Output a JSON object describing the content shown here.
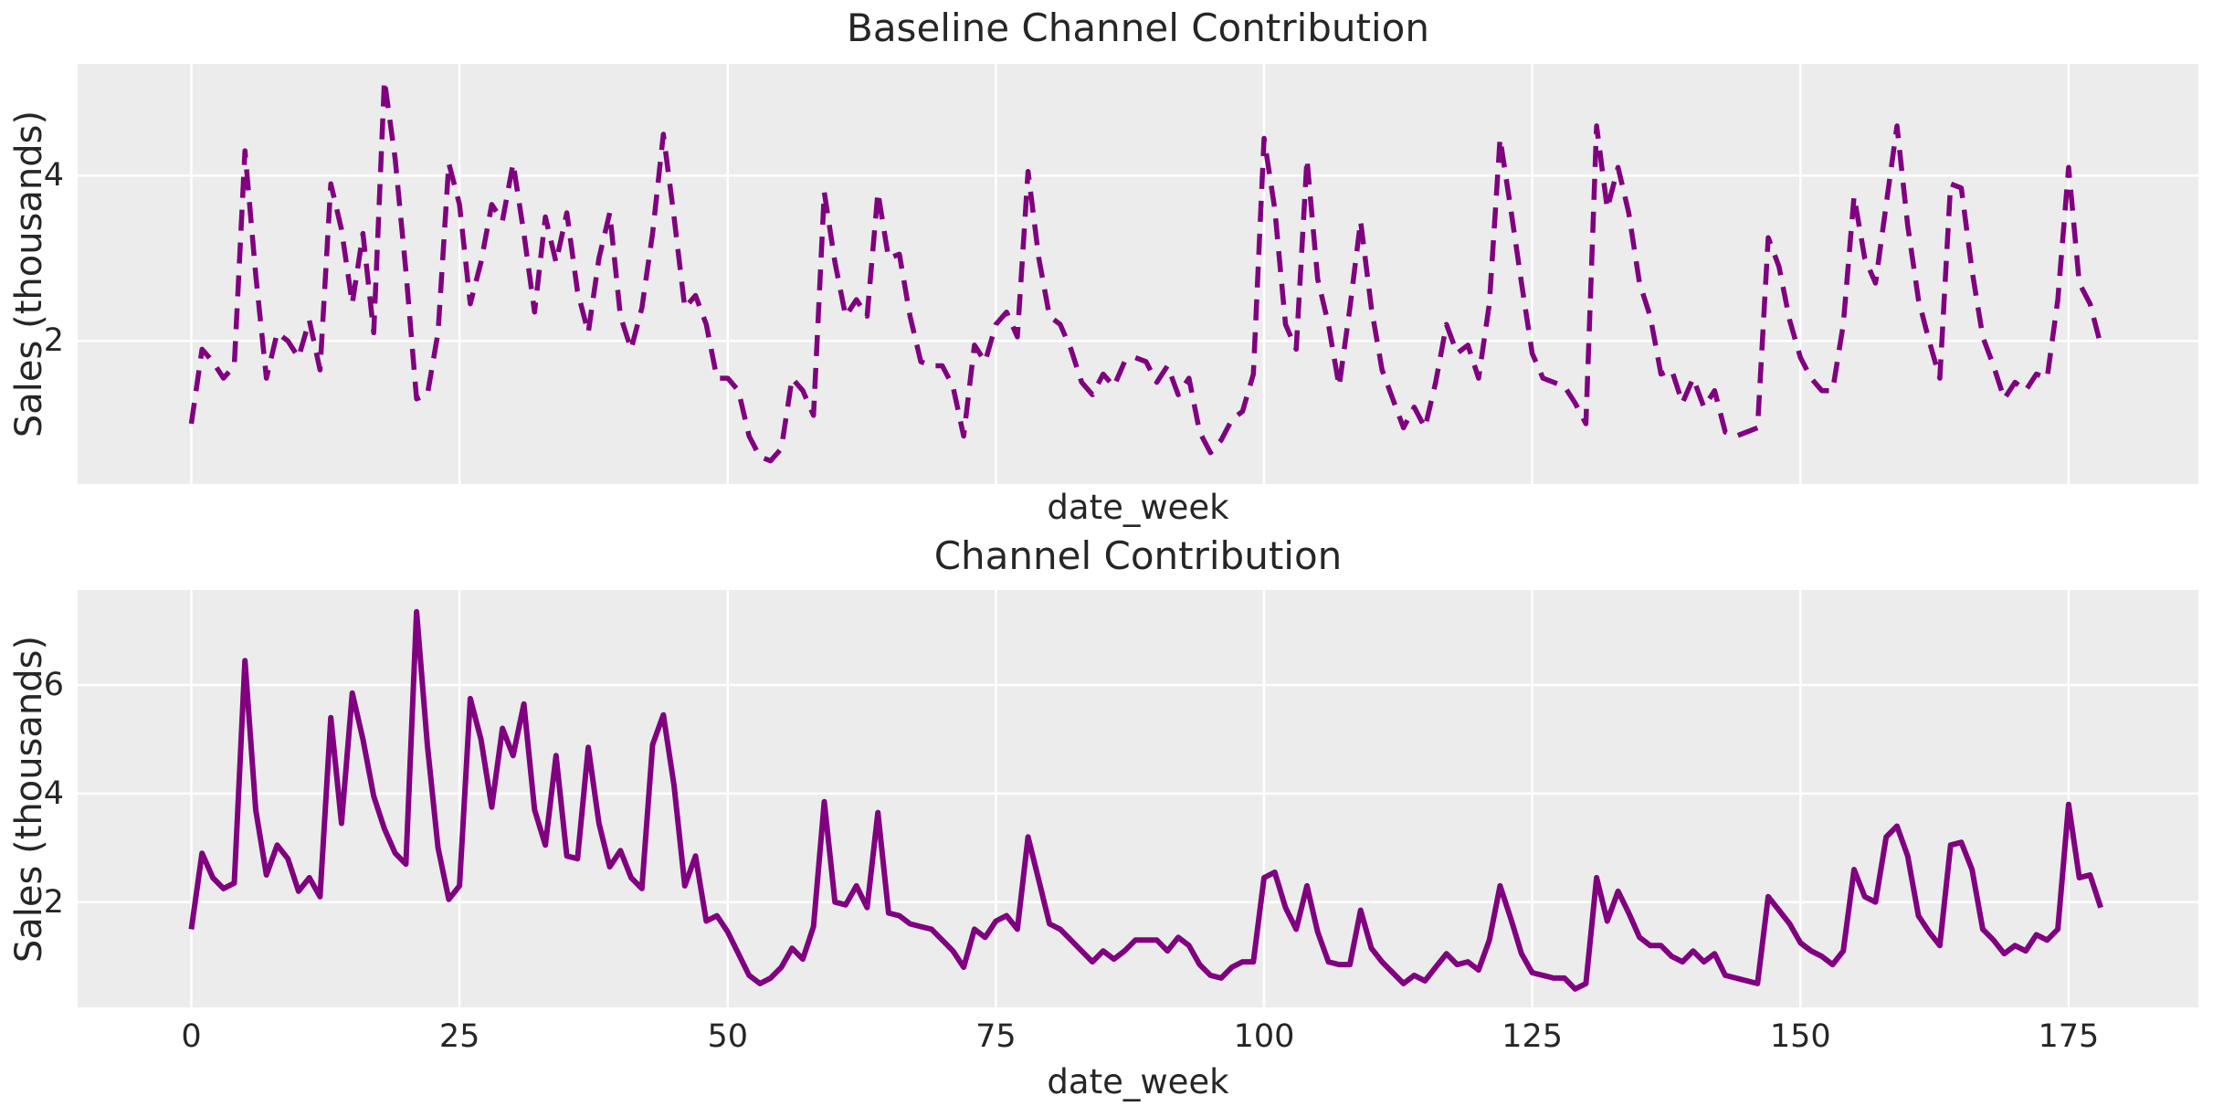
{
  "colors": {
    "figure_background": "#ffffff",
    "plot_background": "#ececec",
    "gridline": "#ffffff",
    "line_purple": "#800080",
    "text": "#262626"
  },
  "chart_data": [
    {
      "type": "line",
      "title": "Baseline Channel Contribution",
      "xlabel": "date_week",
      "ylabel": "Sales (thousands)",
      "line_style": "dashed",
      "color": "#800080",
      "line_width": 5.5,
      "dash": "23 13",
      "grid": true,
      "legend": "none",
      "x_start": 0,
      "x_step": 1,
      "xlim": [
        -10.6,
        187.1
      ],
      "ylim": [
        0.27,
        5.35
      ],
      "xticks": [
        0,
        25,
        50,
        75,
        100,
        125,
        150,
        175
      ],
      "xtick_labels": [],
      "yticks": [
        2,
        4
      ],
      "ytick_labels": [
        "2",
        "4"
      ],
      "values": [
        1.0,
        1.9,
        1.75,
        1.55,
        1.7,
        4.3,
        2.8,
        1.55,
        2.1,
        2.0,
        1.8,
        2.25,
        1.65,
        3.9,
        3.35,
        2.45,
        3.3,
        2.1,
        5.15,
        4.2,
        2.85,
        1.3,
        1.35,
        2.1,
        4.15,
        3.65,
        2.45,
        2.95,
        3.65,
        3.45,
        4.15,
        3.3,
        2.35,
        3.5,
        2.95,
        3.55,
        2.6,
        2.1,
        3.0,
        3.55,
        2.3,
        1.9,
        2.4,
        3.3,
        4.5,
        3.5,
        2.4,
        2.55,
        2.2,
        1.55,
        1.55,
        1.4,
        0.85,
        0.6,
        0.55,
        0.7,
        1.55,
        1.4,
        1.1,
        3.8,
        2.95,
        2.3,
        2.5,
        2.3,
        3.8,
        3.0,
        3.05,
        2.3,
        1.75,
        1.7,
        1.7,
        1.45,
        0.85,
        1.95,
        1.75,
        2.2,
        2.35,
        2.05,
        4.05,
        3.0,
        2.3,
        2.2,
        1.9,
        1.5,
        1.35,
        1.6,
        1.45,
        1.75,
        1.8,
        1.75,
        1.5,
        1.7,
        1.35,
        1.55,
        0.9,
        0.65,
        0.8,
        1.05,
        1.15,
        1.6,
        4.45,
        3.6,
        2.2,
        1.9,
        4.2,
        2.75,
        2.2,
        1.45,
        2.4,
        3.45,
        2.4,
        1.65,
        1.3,
        0.95,
        1.2,
        0.95,
        1.5,
        2.2,
        1.85,
        1.95,
        1.55,
        2.45,
        4.45,
        3.6,
        2.7,
        1.85,
        1.55,
        1.5,
        1.45,
        1.25,
        1.0,
        4.6,
        3.6,
        4.1,
        3.55,
        2.7,
        2.3,
        1.6,
        1.65,
        1.25,
        1.55,
        1.2,
        1.4,
        0.9,
        0.85,
        0.9,
        0.95,
        3.25,
        2.9,
        2.25,
        1.8,
        1.55,
        1.4,
        1.4,
        2.2,
        3.75,
        3.0,
        2.7,
        3.65,
        4.6,
        3.4,
        2.5,
        2.0,
        1.55,
        3.9,
        3.85,
        2.85,
        2.05,
        1.7,
        1.3,
        1.5,
        1.4,
        1.6,
        1.55,
        2.5,
        4.1,
        2.7,
        2.45,
        1.95
      ]
    },
    {
      "type": "line",
      "title": "Channel Contribution",
      "xlabel": "date_week",
      "ylabel": "Sales (thousands)",
      "line_style": "solid",
      "color": "#800080",
      "line_width": 6,
      "dash": "",
      "grid": true,
      "legend": "none",
      "x_start": 0,
      "x_step": 1,
      "xlim": [
        -10.6,
        187.1
      ],
      "ylim": [
        0.06,
        7.75
      ],
      "xticks": [
        0,
        25,
        50,
        75,
        100,
        125,
        150,
        175
      ],
      "xtick_labels": [
        "0",
        "25",
        "50",
        "75",
        "100",
        "125",
        "150",
        "175"
      ],
      "yticks": [
        2,
        4,
        6
      ],
      "ytick_labels": [
        "2",
        "4",
        "6"
      ],
      "values": [
        1.5,
        2.9,
        2.45,
        2.25,
        2.35,
        6.45,
        3.7,
        2.5,
        3.05,
        2.8,
        2.2,
        2.45,
        2.1,
        5.4,
        3.45,
        5.85,
        5.0,
        3.95,
        3.35,
        2.9,
        2.7,
        7.35,
        4.9,
        3.0,
        2.05,
        2.3,
        5.75,
        5.0,
        3.75,
        5.2,
        4.7,
        5.65,
        3.7,
        3.05,
        4.7,
        2.85,
        2.8,
        4.85,
        3.45,
        2.65,
        2.95,
        2.45,
        2.25,
        4.9,
        5.45,
        4.15,
        2.3,
        2.85,
        1.65,
        1.75,
        1.45,
        1.05,
        0.65,
        0.5,
        0.6,
        0.8,
        1.15,
        0.95,
        1.55,
        3.85,
        2.0,
        1.95,
        2.3,
        1.9,
        3.65,
        1.8,
        1.75,
        1.6,
        1.55,
        1.5,
        1.3,
        1.1,
        0.8,
        1.5,
        1.35,
        1.65,
        1.75,
        1.5,
        3.2,
        2.4,
        1.6,
        1.5,
        1.3,
        1.1,
        0.9,
        1.1,
        0.95,
        1.1,
        1.3,
        1.3,
        1.3,
        1.1,
        1.35,
        1.2,
        0.85,
        0.65,
        0.6,
        0.8,
        0.9,
        0.9,
        2.45,
        2.55,
        1.9,
        1.5,
        2.3,
        1.45,
        0.9,
        0.85,
        0.85,
        1.85,
        1.15,
        0.9,
        0.7,
        0.5,
        0.65,
        0.55,
        0.8,
        1.05,
        0.85,
        0.9,
        0.75,
        1.3,
        2.3,
        1.7,
        1.05,
        0.7,
        0.65,
        0.6,
        0.6,
        0.4,
        0.5,
        2.45,
        1.65,
        2.2,
        1.8,
        1.35,
        1.2,
        1.2,
        1.0,
        0.9,
        1.1,
        0.9,
        1.05,
        0.65,
        0.6,
        0.55,
        0.5,
        2.1,
        1.85,
        1.6,
        1.25,
        1.1,
        1.0,
        0.85,
        1.1,
        2.6,
        2.1,
        2.0,
        3.2,
        3.4,
        2.85,
        1.75,
        1.45,
        1.2,
        3.05,
        3.1,
        2.6,
        1.5,
        1.3,
        1.05,
        1.2,
        1.1,
        1.4,
        1.3,
        1.5,
        3.8,
        2.45,
        2.5,
        1.9
      ]
    }
  ]
}
